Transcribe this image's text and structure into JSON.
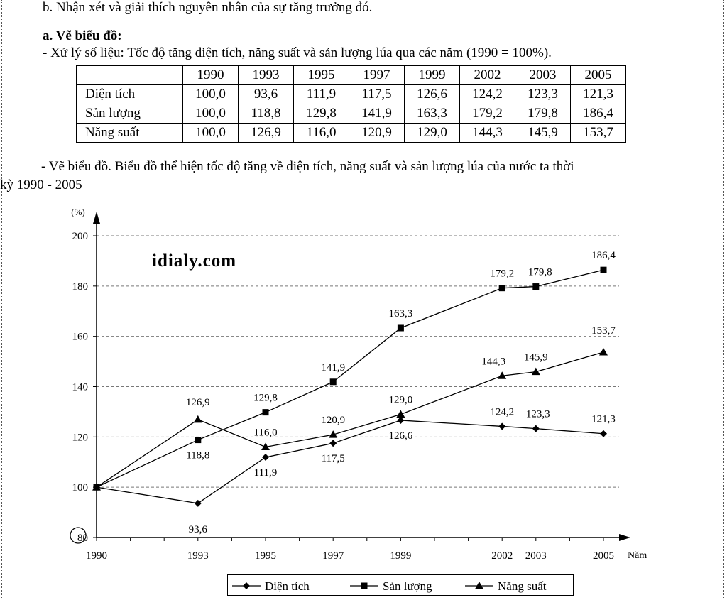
{
  "header_text": "b. Nhận xét và giải thích nguyên nhân của sự tăng trưởng đó.",
  "section_heading": "a. Vẽ biểu đồ:",
  "processing_line": "- Xử lý số liệu: Tốc độ tăng diện tích, năng suất và sản lượng lúa qua các năm (1990 = 100%).",
  "table": {
    "years": [
      "1990",
      "1993",
      "1995",
      "1997",
      "1999",
      "2002",
      "2003",
      "2005"
    ],
    "rows": [
      {
        "label": "Diện tích",
        "values": [
          "100,0",
          "93,6",
          "111,9",
          "117,5",
          "126,6",
          "124,2",
          "123,3",
          "121,3"
        ]
      },
      {
        "label": "Sản lượng",
        "values": [
          "100,0",
          "118,8",
          "129,8",
          "141,9",
          "163,3",
          "179,2",
          "179,8",
          "186,4"
        ]
      },
      {
        "label": "Năng suất",
        "values": [
          "100,0",
          "126,9",
          "116,0",
          "120,9",
          "129,0",
          "144,3",
          "145,9",
          "153,7"
        ]
      }
    ]
  },
  "chart_line_1": "- Vẽ biểu đồ. Biểu đồ thể hiện tốc độ tăng về diện tích, năng suất và sản lượng lúa của nước ta thời",
  "chart_line_2": "kỳ 1990 - 2005",
  "watermark": "idialy.com",
  "chart_data": {
    "type": "line",
    "title": "",
    "xlabel": "Năm",
    "ylabel": "(%)",
    "x": [
      1990,
      1993,
      1995,
      1997,
      1999,
      2002,
      2003,
      2005
    ],
    "x_tick_labels": [
      "1990",
      "1993",
      "1995",
      "1997",
      "1999",
      "2002",
      "2003",
      "2005"
    ],
    "ylim": [
      80,
      200
    ],
    "y_ticks": [
      80,
      100,
      120,
      140,
      160,
      180,
      200
    ],
    "y_tick_labels": [
      "80",
      "100",
      "120",
      "140",
      "160",
      "180",
      "200"
    ],
    "grid": "horizontal-dashed",
    "legend_position": "bottom",
    "series": [
      {
        "name": "Diện tích",
        "marker": "diamond",
        "values": [
          100.0,
          93.6,
          111.9,
          117.5,
          126.6,
          124.2,
          123.3,
          121.3
        ],
        "labels": [
          "",
          "93,6",
          "111,9",
          "117,5",
          "126,6",
          "124,2",
          "123,3",
          "121,3"
        ]
      },
      {
        "name": "Sản lượng",
        "marker": "square",
        "values": [
          100.0,
          118.8,
          129.8,
          141.9,
          163.3,
          179.2,
          179.8,
          186.4
        ],
        "labels": [
          "",
          "118,8",
          "129,8",
          "141,9",
          "163,3",
          "179,2",
          "179,8",
          "186,4"
        ]
      },
      {
        "name": "Năng suất",
        "marker": "triangle",
        "values": [
          100.0,
          126.9,
          116.0,
          120.9,
          129.0,
          144.3,
          145.9,
          153.7
        ],
        "labels": [
          "",
          "126,9",
          "116,0",
          "120,9",
          "129,0",
          "144,3",
          "145,9",
          "153,7"
        ]
      }
    ]
  }
}
